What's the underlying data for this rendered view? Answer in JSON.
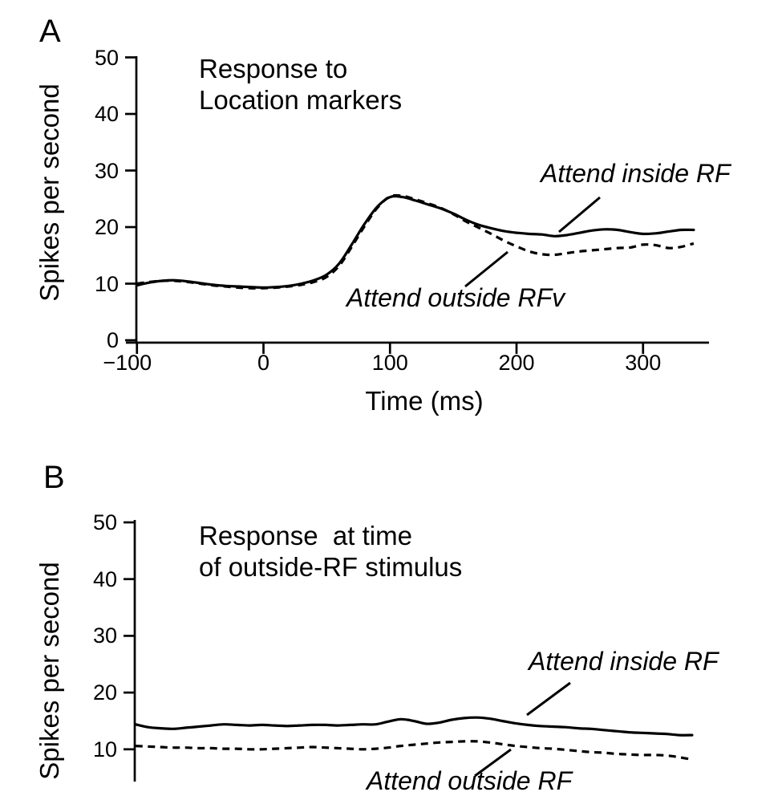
{
  "figure": {
    "background": "#ffffff",
    "ink_color": "#000000",
    "panels": [
      {
        "label": "A",
        "title": "Response to\nLocation markers",
        "ylabel": "Spikes per second",
        "xlabel": "Time (ms)",
        "annotations": [
          {
            "text": "Attend inside RF"
          },
          {
            "text": "Attend outside RFv"
          }
        ]
      },
      {
        "label": "B",
        "title": "Response  at time\nof outside-RF stimulus",
        "ylabel": "Spikes per second",
        "xlabel": "",
        "annotations": [
          {
            "text": "Attend inside RF"
          },
          {
            "text": "Attend outside RF"
          }
        ]
      }
    ]
  },
  "chart_data": [
    {
      "type": "line",
      "title": "Response to Location markers",
      "xlabel": "Time (ms)",
      "ylabel": "Spikes per second",
      "xlim": [
        -100,
        352
      ],
      "ylim": [
        0,
        50
      ],
      "grid": false,
      "x_ticks": [
        -100,
        0,
        100,
        200,
        300
      ],
      "x_tick_labels": [
        "−100",
        "0",
        "100",
        "200",
        "300"
      ],
      "y_ticks": [
        0,
        10,
        20,
        30,
        40,
        50
      ],
      "y_tick_labels": [
        "0",
        "10",
        "20",
        "30",
        "40",
        "50"
      ],
      "x": [
        -100,
        -90,
        -80,
        -70,
        -60,
        -50,
        -40,
        -30,
        -20,
        -10,
        0,
        10,
        20,
        30,
        40,
        50,
        60,
        70,
        80,
        90,
        100,
        110,
        120,
        130,
        140,
        150,
        160,
        170,
        180,
        190,
        200,
        210,
        220,
        230,
        240,
        250,
        260,
        270,
        280,
        290,
        300,
        310,
        320,
        330,
        340
      ],
      "series": [
        {
          "name": "Attend inside RF",
          "style": "solid",
          "values": [
            9.7,
            10.2,
            10.5,
            10.6,
            10.4,
            10.1,
            9.8,
            9.6,
            9.5,
            9.4,
            9.3,
            9.4,
            9.6,
            10.0,
            10.6,
            11.6,
            13.6,
            17.0,
            20.6,
            23.6,
            25.3,
            25.3,
            24.7,
            24.0,
            23.3,
            22.4,
            21.3,
            20.4,
            19.8,
            19.3,
            19.0,
            18.8,
            18.7,
            18.4,
            18.6,
            19.0,
            19.4,
            19.6,
            19.5,
            19.1,
            18.8,
            18.9,
            19.2,
            19.5,
            19.5
          ]
        },
        {
          "name": "Attend outside RFv",
          "style": "dashed",
          "values": [
            10.0,
            10.3,
            10.5,
            10.5,
            10.3,
            10.0,
            9.7,
            9.5,
            9.3,
            9.2,
            9.2,
            9.3,
            9.5,
            9.8,
            10.3,
            11.2,
            13.2,
            16.6,
            20.2,
            23.4,
            25.4,
            25.5,
            24.9,
            24.2,
            23.4,
            22.3,
            21.0,
            19.9,
            18.8,
            17.6,
            16.6,
            15.7,
            15.2,
            15.1,
            15.4,
            15.7,
            15.9,
            16.1,
            16.3,
            16.4,
            16.9,
            16.8,
            16.3,
            16.5,
            17.1
          ]
        }
      ]
    },
    {
      "type": "line",
      "title": "Response at time of outside-RF stimulus",
      "xlabel": "",
      "ylabel": "Spikes per second",
      "xlim": [
        -100,
        352
      ],
      "ylim": [
        0,
        50
      ],
      "grid": false,
      "x_ticks": [],
      "x_tick_labels": [],
      "y_ticks": [
        10,
        20,
        30,
        40,
        50
      ],
      "y_tick_labels": [
        "10",
        "20",
        "30",
        "40",
        "50"
      ],
      "x": [
        -100,
        -90,
        -80,
        -70,
        -60,
        -50,
        -40,
        -30,
        -20,
        -10,
        0,
        10,
        20,
        30,
        40,
        50,
        60,
        70,
        80,
        90,
        100,
        110,
        120,
        130,
        140,
        150,
        160,
        170,
        180,
        190,
        200,
        210,
        220,
        230,
        240,
        250,
        260,
        270,
        280,
        290,
        300,
        310,
        320,
        330,
        340
      ],
      "series": [
        {
          "name": "Attend inside RF",
          "style": "solid",
          "values": [
            14.4,
            13.9,
            13.7,
            13.6,
            13.8,
            14.0,
            14.2,
            14.4,
            14.3,
            14.2,
            14.3,
            14.2,
            14.1,
            14.2,
            14.3,
            14.3,
            14.2,
            14.3,
            14.4,
            14.4,
            14.9,
            15.3,
            15.0,
            14.5,
            14.7,
            15.2,
            15.5,
            15.6,
            15.4,
            15.0,
            14.6,
            14.3,
            14.1,
            14.0,
            13.9,
            13.7,
            13.6,
            13.4,
            13.2,
            13.0,
            12.9,
            12.8,
            12.7,
            12.5,
            12.5
          ]
        },
        {
          "name": "Attend outside RF",
          "style": "dashed",
          "values": [
            10.6,
            10.5,
            10.4,
            10.3,
            10.3,
            10.2,
            10.2,
            10.1,
            10.1,
            10.0,
            10.0,
            10.1,
            10.2,
            10.3,
            10.4,
            10.3,
            10.2,
            10.1,
            10.0,
            10.1,
            10.3,
            10.6,
            10.8,
            11.0,
            11.2,
            11.3,
            11.4,
            11.4,
            11.2,
            10.9,
            10.6,
            10.4,
            10.2,
            10.1,
            9.9,
            9.7,
            9.5,
            9.4,
            9.2,
            9.1,
            9.0,
            9.0,
            8.9,
            8.6,
            8.2
          ]
        }
      ]
    }
  ]
}
